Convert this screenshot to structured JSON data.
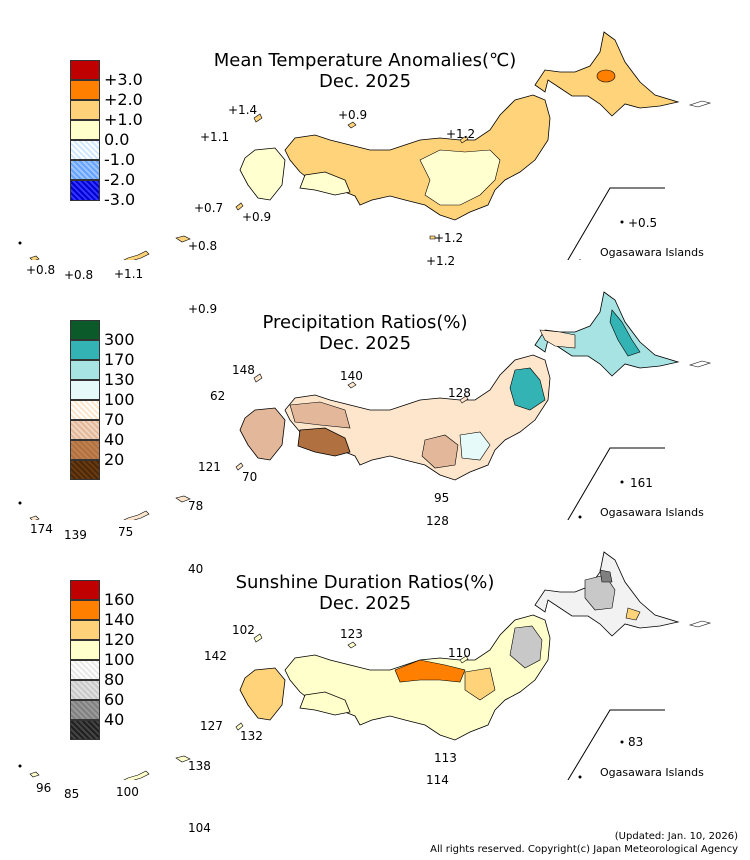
{
  "panels": [
    {
      "title": "Mean Temperature Anomalies(℃)",
      "subtitle": "Dec. 2025",
      "legend": {
        "labels": [
          "+3.0",
          "+2.0",
          "+1.0",
          "0.0",
          "-1.0",
          "-2.0",
          "-3.0"
        ],
        "colors": [
          "#c00000",
          "#ff8000",
          "#ffd27a",
          "#ffffcc",
          "#cfe8ff",
          "#66a3ff",
          "#0000cc"
        ]
      },
      "region_colors": {
        "main": "#fed37a",
        "light": "#ffffd0",
        "hot": "#ff8000"
      },
      "station_values": [
        "+1.4",
        "+0.9",
        "+1.1",
        "+1.2",
        "+0.7",
        "+0.9",
        "+1.2",
        "+1.2",
        "+0.5",
        "+0.8",
        "+0.8",
        "+1.1",
        "+0.8",
        "+0.9"
      ],
      "ogasawara_label": "Ogasawara Islands"
    },
    {
      "title": "Precipitation Ratios(%)",
      "subtitle": "Dec. 2025",
      "legend": {
        "labels": [
          "300",
          "170",
          "130",
          "100",
          "70",
          "40",
          "20"
        ],
        "colors": [
          "#0a5a2a",
          "#33b3b3",
          "#a8e3e3",
          "#e6fafa",
          "#fde6cc",
          "#e2b79a",
          "#b07040",
          "#6a3a10"
        ]
      },
      "region_colors": {
        "main": "#fde6cc",
        "light": "#e6fafa",
        "teal": "#a8e3e3",
        "dark": "#33b3b3",
        "brown": "#b07040",
        "tan": "#e2b79a"
      },
      "station_values": [
        "148",
        "140",
        "62",
        "128",
        "121",
        "70",
        "95",
        "128",
        "161",
        "174",
        "139",
        "75",
        "78",
        "40"
      ],
      "ogasawara_label": "Ogasawara Islands"
    },
    {
      "title": "Sunshine Duration Ratios(%)",
      "subtitle": "Dec. 2025",
      "legend": {
        "labels": [
          "160",
          "140",
          "120",
          "100",
          "80",
          "60",
          "40"
        ],
        "colors": [
          "#c00000",
          "#ff8000",
          "#ffd27a",
          "#ffffcc",
          "#f2f2f2",
          "#c8c8c8",
          "#808080",
          "#202020"
        ]
      },
      "region_colors": {
        "main": "#ffffcc",
        "warm": "#fed37a",
        "hot": "#ff8000",
        "grey": "#c8c8c8",
        "dark": "#808080"
      },
      "station_values": [
        "102",
        "123",
        "142",
        "110",
        "127",
        "132",
        "113",
        "114",
        "83",
        "96",
        "85",
        "100",
        "138",
        "104"
      ],
      "ogasawara_label": "Ogasawara Islands"
    }
  ],
  "footer": {
    "updated": "(Updated: Jan. 10, 2026)",
    "copyright": "All rights reserved. Copyright(c) Japan Meteorological Agency"
  }
}
